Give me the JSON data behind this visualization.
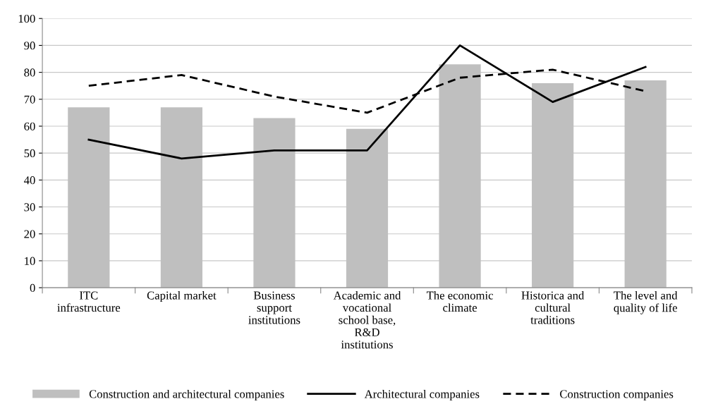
{
  "chart_data": {
    "type": "bar",
    "categories": [
      "ITC\ninfrastructure",
      "Capital market",
      "Business\nsupport\ninstitutions",
      "Academic and\nvocational\nschool base,\nR&D\ninstitutions",
      "The economic\nclimate",
      "Historica and\ncultural\ntraditions",
      "The level and\nquality of life"
    ],
    "series": [
      {
        "name": "Construction and architectural companies",
        "color": "#bfbfbf",
        "values": [
          67,
          67,
          63,
          59,
          83,
          76,
          77
        ]
      },
      {
        "name": "Architectural companies",
        "type": "line",
        "line_style": "solid",
        "color": "#000000",
        "values": [
          55,
          48,
          51,
          51,
          90,
          69,
          82
        ]
      },
      {
        "name": "Construction companies",
        "type": "line",
        "line_style": "dashed",
        "color": "#000000",
        "values": [
          75,
          79,
          71,
          65,
          78,
          81,
          73
        ]
      }
    ],
    "ylim": [
      0,
      100
    ],
    "yticks": [
      0,
      10,
      20,
      30,
      40,
      50,
      60,
      70,
      80,
      90,
      100
    ],
    "grid": "y",
    "legend": "bottom",
    "marker": "none"
  }
}
